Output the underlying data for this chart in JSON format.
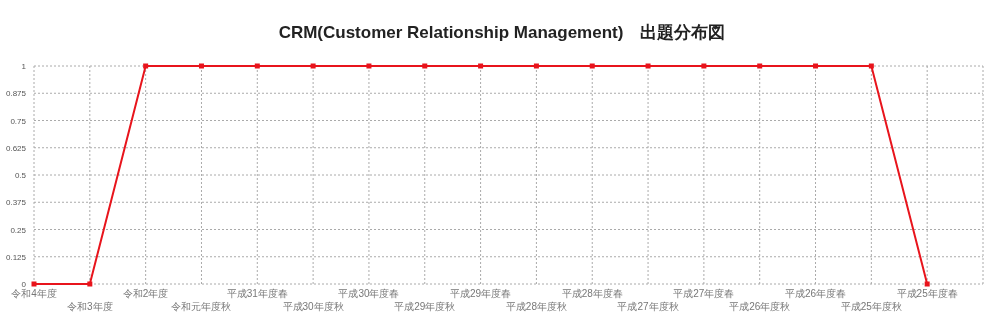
{
  "chart_data": {
    "type": "line",
    "title": "CRM(Customer Relationship Management)　出題分布図",
    "categories": [
      "令和4年度",
      "令和3年度",
      "令和2年度",
      "令和元年度秋",
      "平成31年度春",
      "平成30年度秋",
      "平成30年度春",
      "平成29年度秋",
      "平成29年度春",
      "平成28年度秋",
      "平成28年度春",
      "平成27年度秋",
      "平成27年度春",
      "平成26年度秋",
      "平成26年度春",
      "平成25年度秋",
      "平成25年度春"
    ],
    "series": [
      {
        "color": "#e8141c",
        "values": [
          0,
          0,
          1,
          1,
          1,
          1,
          1,
          1,
          1,
          1,
          1,
          1,
          1,
          1,
          1,
          1,
          0
        ]
      }
    ],
    "ylim": [
      0,
      1
    ],
    "yticks": [
      0,
      0.125,
      0.25,
      0.375,
      0.5,
      0.625,
      0.75,
      0.875,
      1
    ],
    "grid": true,
    "marker": "square",
    "line_style": "solid"
  }
}
